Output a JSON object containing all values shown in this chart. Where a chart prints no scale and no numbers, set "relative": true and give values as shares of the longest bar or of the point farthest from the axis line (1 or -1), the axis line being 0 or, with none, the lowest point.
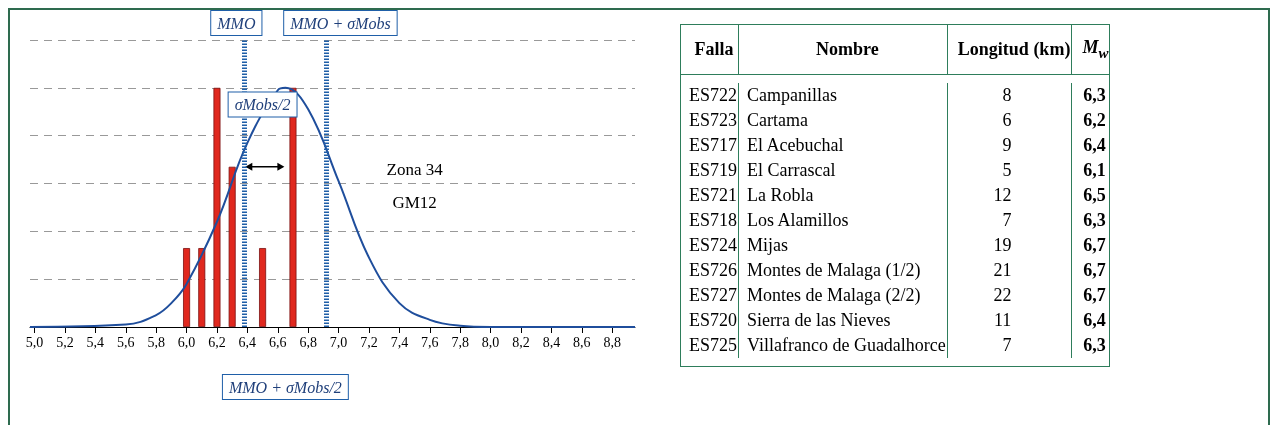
{
  "chart_data": [
    {
      "type": "bar",
      "relative": true,
      "grid": "y",
      "xlim": [
        4.97,
        8.95
      ],
      "xticks": [
        {
          "value": 5.0,
          "label": "5,0"
        },
        {
          "value": 5.2,
          "label": "5,2"
        },
        {
          "value": 5.4,
          "label": "5,4"
        },
        {
          "value": 5.6,
          "label": "5,6"
        },
        {
          "value": 5.8,
          "label": "5,8"
        },
        {
          "value": 6.0,
          "label": "6,0"
        },
        {
          "value": 6.2,
          "label": "6,2"
        },
        {
          "value": 6.4,
          "label": "6,4"
        },
        {
          "value": 6.6,
          "label": "6,6"
        },
        {
          "value": 6.8,
          "label": "6,8"
        },
        {
          "value": 7.0,
          "label": "7,0"
        },
        {
          "value": 7.2,
          "label": "7,2"
        },
        {
          "value": 7.4,
          "label": "7,4"
        },
        {
          "value": 7.6,
          "label": "7,6"
        },
        {
          "value": 7.8,
          "label": "7,8"
        },
        {
          "value": 8.0,
          "label": "8,0"
        },
        {
          "value": 8.2,
          "label": "8,2"
        },
        {
          "value": 8.4,
          "label": "8,4"
        },
        {
          "value": 8.6,
          "label": "8,6"
        },
        {
          "value": 8.8,
          "label": "8,8"
        }
      ],
      "series": [
        {
          "type": "bar",
          "color": "#e0281e",
          "x": [
            6.0,
            6.1,
            6.2,
            6.3,
            6.5,
            6.7
          ],
          "values": [
            0.33,
            0.33,
            1,
            0.67,
            0.33,
            1
          ]
        },
        {
          "type": "line",
          "color": "#1f4e9c",
          "line_style": "solid",
          "marker": "none",
          "x": [
            4.97,
            5.6,
            5.8,
            5.9,
            6.0,
            6.2,
            6.4,
            6.6,
            6.65,
            6.8,
            7.0,
            7.2,
            7.4,
            7.6,
            7.8,
            8.0,
            8.95
          ],
          "values": [
            0,
            0.01,
            0.05,
            0.1,
            0.18,
            0.44,
            0.77,
            0.99,
            1,
            0.91,
            0.61,
            0.29,
            0.1,
            0.03,
            0.005,
            0,
            0
          ]
        }
      ],
      "ref_lines": [
        {
          "axis": "x",
          "value": 6.38,
          "label": "MMO",
          "color": "#1f5fa8",
          "line_style": "dotted"
        },
        {
          "axis": "x",
          "value": 6.92,
          "label": "MMO + σMobs",
          "color": "#1f5fa8",
          "line_style": "dotted"
        }
      ],
      "annotations": [
        "σMobs/2",
        "MMO + σMobs/2",
        "Zona 34",
        "GM12"
      ]
    },
    {
      "type": "other",
      "categories": [
        "Falla",
        "Nombre",
        "Longitud (km)",
        "M$_{w}$"
      ],
      "cell_labels": [
        [
          "ES722",
          "Campanillas",
          "8",
          "6,3"
        ],
        [
          "ES723",
          "Cartama",
          "6",
          "6,2"
        ],
        [
          "ES717",
          "El Acebuchal",
          "9",
          "6,4"
        ],
        [
          "ES719",
          "El Carrascal",
          "5",
          "6,1"
        ],
        [
          "ES721",
          "La Robla",
          "12",
          "6,5"
        ],
        [
          "ES718",
          "Los Alamillos",
          "7",
          "6,3"
        ],
        [
          "ES724",
          "Mijas",
          "19",
          "6,7"
        ],
        [
          "ES726",
          "Montes de Malaga (1/2)",
          "21",
          "6,7"
        ],
        [
          "ES727",
          "Montes de Malaga (2/2)",
          "22",
          "6,7"
        ],
        [
          "ES720",
          "Sierra de las Nieves",
          "11",
          "6,4"
        ],
        [
          "ES725",
          "Villafranco de Guadalhorce",
          "7",
          "6,3"
        ]
      ]
    }
  ]
}
